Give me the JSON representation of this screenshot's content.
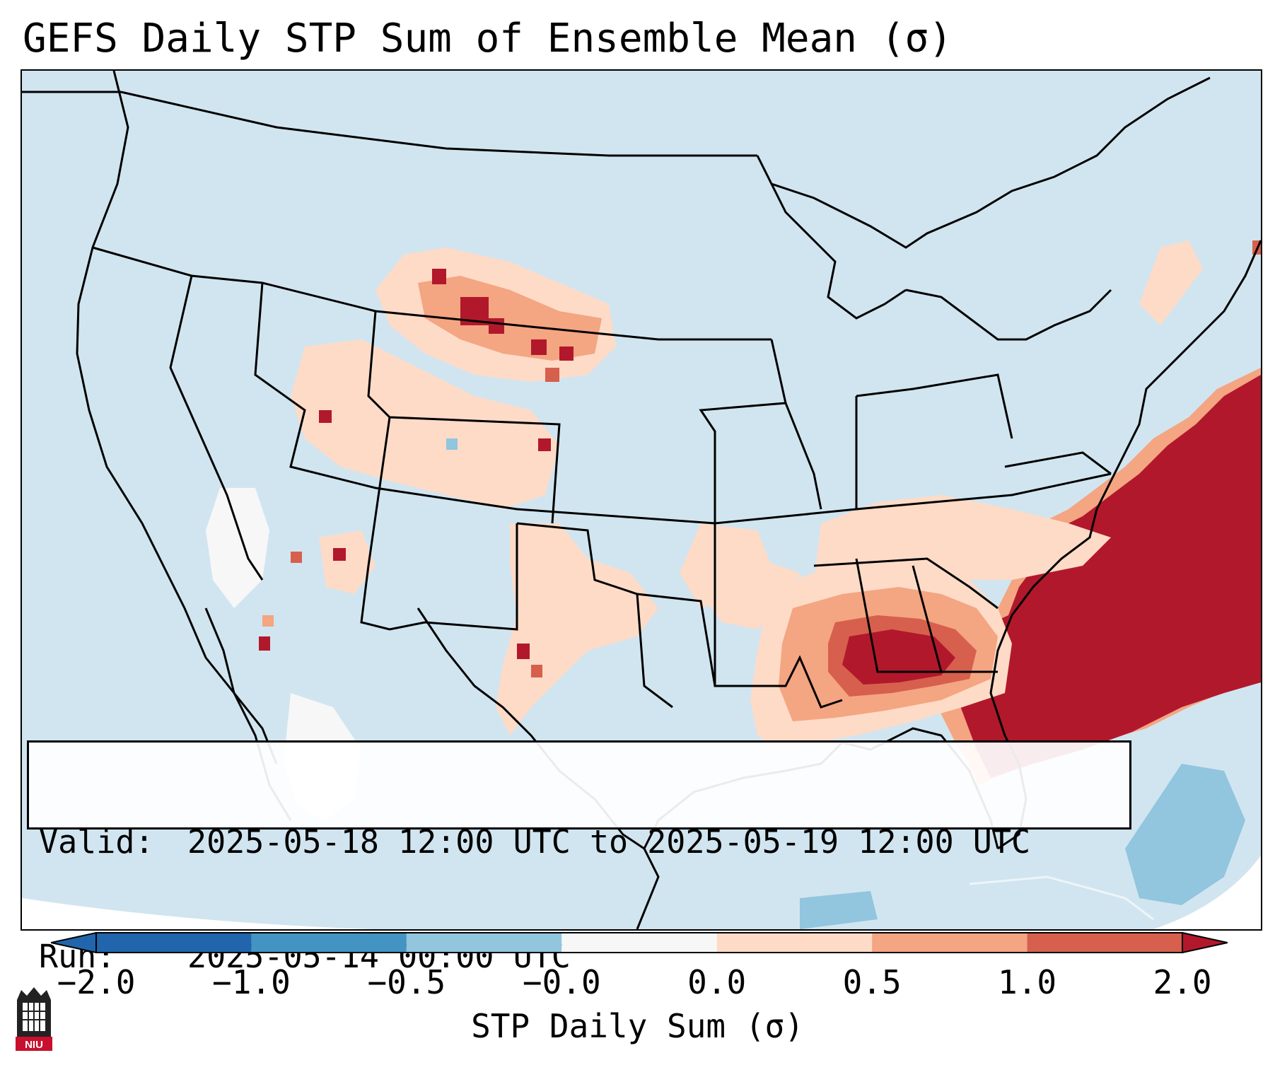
{
  "title": "GEFS Daily STP Sum of Ensemble Mean (σ)",
  "info": {
    "valid_label": "Valid:",
    "valid_value": "2025-05-18 12:00 UTC to 2025-05-19 12:00 UTC",
    "run_label": "Run:",
    "run_value": "2025-05-14 00:00 UTC"
  },
  "colorbar": {
    "label": "STP Daily Sum (σ)",
    "ticks": [
      "−2.0",
      "−1.0",
      "−0.5",
      "−0.0",
      "0.0",
      "0.5",
      "1.0",
      "2.0"
    ],
    "colors": [
      "#2166ac",
      "#4393c3",
      "#92c5de",
      "#d1e5f0",
      "#f7f7f7",
      "#fddbc7",
      "#f4a582",
      "#d6604d",
      "#b2182b"
    ],
    "extend": "both"
  },
  "logo_text": "NIU",
  "map": {
    "region": "Contiguous United States",
    "highlight_regions": [
      {
        "name": "Southeast & western Atlantic",
        "value": "≥ 2.0"
      },
      {
        "name": "Alabama / Georgia",
        "value": "1.0 to 2.0"
      },
      {
        "name": "Wyoming / western Nebraska",
        "value": "1.0 to 2.0"
      },
      {
        "name": "Tennessee / Kentucky",
        "value": "0.0 to 0.5"
      }
    ]
  }
}
